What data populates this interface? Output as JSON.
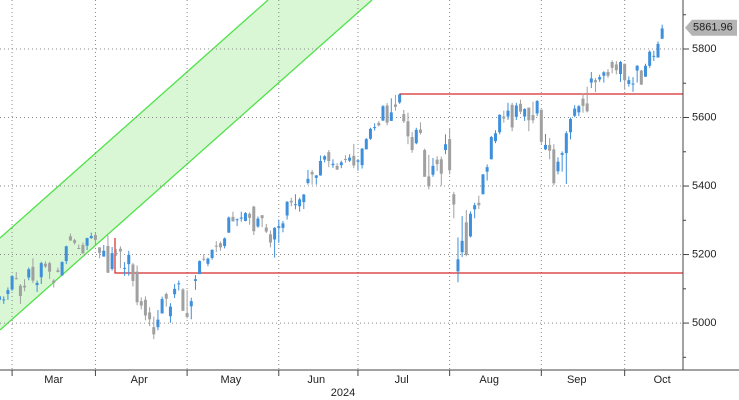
{
  "chart_data": {
    "type": "candlestick",
    "x": [
      0,
      1,
      2,
      3,
      4,
      5,
      6,
      7,
      8,
      9,
      10,
      11,
      12,
      13,
      14,
      15,
      16,
      17,
      18,
      19,
      20,
      21,
      22,
      23,
      24,
      25,
      26,
      27,
      28,
      29,
      30,
      31,
      32,
      33,
      34,
      35,
      36,
      37,
      38,
      39,
      40,
      41,
      42,
      43,
      44,
      45,
      46,
      47,
      48,
      49,
      50,
      51,
      52,
      53,
      54,
      55,
      56,
      57,
      58,
      59,
      60,
      61,
      62,
      63,
      64,
      65,
      66,
      67,
      68,
      69,
      70,
      71,
      72,
      73,
      74,
      75,
      76,
      77,
      78,
      79,
      80,
      81,
      82,
      83,
      84,
      85,
      86,
      87,
      88,
      89,
      90,
      91,
      92,
      93,
      94,
      95,
      96,
      97,
      98,
      99,
      100,
      101,
      102,
      103,
      104,
      105,
      106,
      107,
      108,
      109,
      110,
      111,
      112,
      113,
      114,
      115,
      116,
      117,
      118,
      119,
      120,
      121,
      122,
      123,
      124,
      125,
      126,
      127,
      128,
      129,
      130,
      131,
      132,
      133,
      134,
      135,
      136,
      137,
      138,
      139,
      140,
      141,
      142,
      143,
      144,
      145,
      146,
      147,
      148,
      149,
      150,
      151,
      152,
      153,
      154,
      155,
      156,
      157,
      158,
      159
    ],
    "open": [
      5068,
      5067,
      5085,
      5098,
      5131,
      5109,
      5109,
      5133,
      5164,
      5111,
      5134,
      5173,
      5175,
      5124,
      5154,
      5139,
      5181,
      5253,
      5242,
      5219,
      5228,
      5226,
      5248,
      5257,
      5221,
      5194,
      5225,
      5158,
      5204,
      5217,
      5160,
      5172,
      5171,
      5150,
      5064,
      5068,
      5031,
      4988,
      4988,
      5028,
      5085,
      5020,
      5084,
      5115,
      5098,
      5029,
      5049,
      5123,
      5143,
      5188,
      5173,
      5190,
      5226,
      5233,
      5225,
      5264,
      5310,
      5303,
      5305,
      5298,
      5319,
      5340,
      5282,
      5315,
      5279,
      5259,
      5244,
      5278,
      5278,
      5314,
      5357,
      5344,
      5341,
      5353,
      5409,
      5441,
      5424,
      5431,
      5477,
      5499,
      5461,
      5459,
      5461,
      5479,
      5474,
      5488,
      5471,
      5461,
      5507,
      5538,
      5572,
      5584,
      5591,
      5635,
      5590,
      5638,
      5644,
      5610,
      5589,
      5543,
      5525,
      5565,
      5505,
      5428,
      5433,
      5477,
      5478,
      5505,
      5537,
      5376,
      5151,
      5207,
      5294,
      5253,
      5332,
      5351,
      5376,
      5442,
      5478,
      5531,
      5557,
      5603,
      5603,
      5637,
      5602,
      5640,
      5603,
      5629,
      5607,
      5612,
      5623,
      5507,
      5520,
      5507,
      5443,
      5491,
      5496,
      5557,
      5605,
      5615,
      5655,
      5641,
      5702,
      5709,
      5711,
      5722,
      5733,
      5762,
      5755,
      5727,
      5757,
      5698,
      5698,
      5737,
      5737,
      5719,
      5751,
      5778,
      5775,
      5830
    ],
    "high": [
      5080,
      5078,
      5104,
      5140,
      5149,
      5114,
      5128,
      5162,
      5189,
      5124,
      5179,
      5180,
      5179,
      5128,
      5162,
      5180,
      5226,
      5261,
      5246,
      5229,
      5235,
      5249,
      5264,
      5263,
      5221,
      5228,
      5256,
      5222,
      5216,
      5224,
      5178,
      5211,
      5175,
      5168,
      5075,
      5078,
      5046,
      5019,
      5038,
      5077,
      5089,
      5058,
      5114,
      5124,
      5102,
      5096,
      5074,
      5140,
      5183,
      5201,
      5191,
      5215,
      5239,
      5238,
      5250,
      5311,
      5325,
      5305,
      5325,
      5324,
      5323,
      5342,
      5311,
      5315,
      5289,
      5270,
      5280,
      5302,
      5298,
      5356,
      5366,
      5376,
      5366,
      5377,
      5447,
      5447,
      5432,
      5489,
      5490,
      5505,
      5478,
      5467,
      5474,
      5490,
      5493,
      5523,
      5479,
      5511,
      5540,
      5570,
      5583,
      5590,
      5636,
      5642,
      5656,
      5666,
      5670,
      5622,
      5614,
      5558,
      5570,
      5586,
      5509,
      5491,
      5482,
      5487,
      5486,
      5551,
      5567,
      5383,
      5250,
      5312,
      5330,
      5326,
      5351,
      5372,
      5435,
      5463,
      5546,
      5563,
      5609,
      5620,
      5643,
      5643,
      5643,
      5652,
      5627,
      5629,
      5646,
      5651,
      5623,
      5552,
      5540,
      5522,
      5484,
      5501,
      5560,
      5600,
      5636,
      5636,
      5670,
      5690,
      5733,
      5715,
      5725,
      5735,
      5741,
      5767,
      5765,
      5765,
      5757,
      5720,
      5718,
      5753,
      5739,
      5757,
      5796,
      5795,
      5822,
      5871
    ],
    "low": [
      5058,
      5056,
      5068,
      5094,
      5127,
      5056,
      5093,
      5125,
      5117,
      5091,
      5114,
      5161,
      5129,
      5104,
      5148,
      5138,
      5172,
      5240,
      5229,
      5216,
      5203,
      5213,
      5246,
      5229,
      5189,
      5194,
      5146,
      5153,
      5196,
      5160,
      5138,
      5138,
      5107,
      5052,
      5040,
      5008,
      4991,
      4953,
      4979,
      5028,
      5048,
      5001,
      5073,
      5095,
      5035,
      5013,
      5011,
      5097,
      5143,
      5181,
      5166,
      5185,
      5207,
      5211,
      5218,
      5263,
      5296,
      5283,
      5296,
      5297,
      5287,
      5257,
      5278,
      5280,
      5263,
      5221,
      5191,
      5234,
      5265,
      5302,
      5341,
      5332,
      5325,
      5333,
      5404,
      5404,
      5404,
      5430,
      5469,
      5455,
      5453,
      5447,
      5452,
      5468,
      5470,
      5452,
      5445,
      5451,
      5507,
      5535,
      5562,
      5574,
      5590,
      5577,
      5590,
      5620,
      5640,
      5584,
      5522,
      5497,
      5522,
      5550,
      5427,
      5390,
      5427,
      5444,
      5401,
      5493,
      5434,
      5306,
      5119,
      5193,
      5195,
      5250,
      5306,
      5333,
      5376,
      5416,
      5478,
      5525,
      5551,
      5585,
      5593,
      5560,
      5593,
      5610,
      5590,
      5560,
      5583,
      5604,
      5521,
      5505,
      5478,
      5402,
      5434,
      5442,
      5406,
      5536,
      5601,
      5604,
      5614,
      5615,
      5686,
      5674,
      5704,
      5702,
      5716,
      5729,
      5726,
      5704,
      5681,
      5690,
      5675,
      5702,
      5695,
      5719,
      5745,
      5765,
      5775,
      5829
    ],
    "close": [
      5078,
      5069,
      5096,
      5137,
      5130,
      5079,
      5104,
      5157,
      5124,
      5117,
      5175,
      5165,
      5150,
      5117,
      5149,
      5178,
      5224,
      5241,
      5234,
      5218,
      5203,
      5248,
      5254,
      5243,
      5205,
      5211,
      5147,
      5204,
      5202,
      5209,
      5161,
      5199,
      5123,
      5061,
      5051,
      5022,
      5011,
      4967,
      5010,
      5070,
      5071,
      5048,
      5100,
      5116,
      5036,
      5018,
      5064,
      5128,
      5181,
      5187,
      5188,
      5214,
      5223,
      5221,
      5247,
      5308,
      5297,
      5303,
      5308,
      5321,
      5307,
      5268,
      5305,
      5306,
      5267,
      5235,
      5278,
      5283,
      5291,
      5354,
      5352,
      5347,
      5361,
      5375,
      5421,
      5434,
      5431,
      5473,
      5487,
      5473,
      5465,
      5448,
      5469,
      5478,
      5483,
      5460,
      5475,
      5509,
      5537,
      5567,
      5572,
      5577,
      5633,
      5585,
      5615,
      5631,
      5667,
      5589,
      5545,
      5505,
      5564,
      5555,
      5427,
      5399,
      5459,
      5464,
      5436,
      5522,
      5446,
      5346,
      5186,
      5240,
      5199,
      5319,
      5344,
      5344,
      5434,
      5455,
      5543,
      5554,
      5608,
      5597,
      5620,
      5571,
      5635,
      5617,
      5625,
      5592,
      5592,
      5648,
      5529,
      5520,
      5503,
      5408,
      5471,
      5496,
      5554,
      5596,
      5626,
      5633,
      5634,
      5618,
      5714,
      5703,
      5718,
      5732,
      5722,
      5745,
      5738,
      5762,
      5709,
      5709,
      5699,
      5751,
      5696,
      5751,
      5792,
      5780,
      5815,
      5860
    ],
    "up_color": "#3e8fdc",
    "down_color": "#a0a0a0",
    "xlim": [
      0.1,
      164
    ],
    "ylim": [
      4863,
      5943
    ],
    "xticks": [
      3,
      23,
      45,
      67,
      86,
      108,
      130,
      150
    ],
    "month_labels": [
      {
        "value": 13,
        "label": "Mar"
      },
      {
        "value": 33.5,
        "label": "Apr"
      },
      {
        "value": 55.5,
        "label": "May"
      },
      {
        "value": 76,
        "label": "Jun"
      },
      {
        "value": 96.5,
        "label": "Jul"
      },
      {
        "value": 117.5,
        "label": "Aug"
      },
      {
        "value": 138.5,
        "label": "Sep"
      },
      {
        "value": 159,
        "label": "Oct"
      }
    ],
    "year_label": "2024",
    "yticks": [
      5000,
      5200,
      5400,
      5600,
      5800
    ],
    "minor_yticks": [
      4900,
      5100,
      5300,
      5500,
      5700,
      5900
    ],
    "grid": true,
    "last_price": 5861.96
  }
}
